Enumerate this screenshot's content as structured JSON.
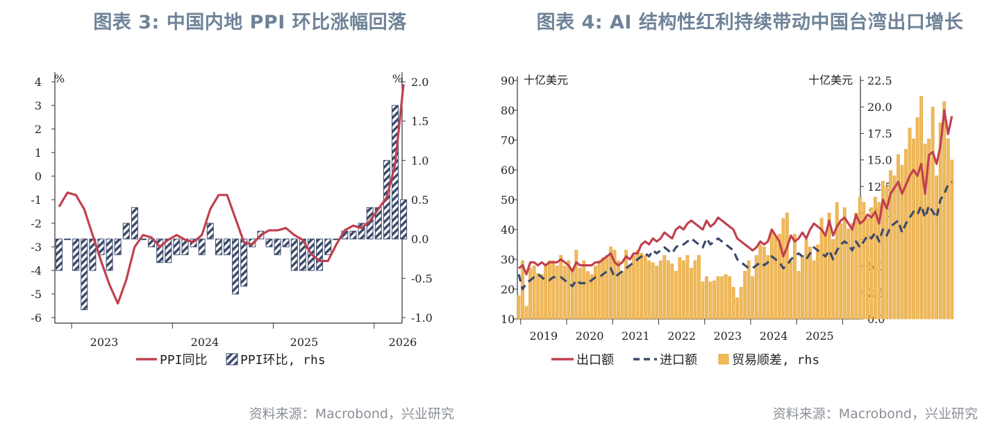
{
  "chart_data": [
    {
      "type": "bar+line",
      "title": "图表 3: 中国内地 PPI 环比涨幅回落",
      "source": "资料来源：Macrobond，兴业研究",
      "unit_left": "%",
      "unit_right": "%",
      "ylim_left": [
        -6,
        4
      ],
      "yticks_left": [
        "4",
        "3",
        "2",
        "1",
        "0",
        "-1",
        "-2",
        "-3",
        "-4",
        "-5",
        "-6"
      ],
      "ylim_right": [
        -1.0,
        2.0
      ],
      "yticks_right": [
        "2.0",
        "1.5",
        "1.0",
        "0.5",
        "0.0",
        "-0.5",
        "-1.0"
      ],
      "xticks": [
        "2023",
        "2024",
        "2025",
        "2026"
      ],
      "legend": [
        "PPI同比",
        "PPI环比, rhs"
      ],
      "colors": {
        "line": "#c0404f",
        "bar": "#3c4a6b"
      },
      "months": [
        "2022-11",
        "2022-12",
        "2023-01",
        "2023-02",
        "2023-03",
        "2023-04",
        "2023-05",
        "2023-06",
        "2023-07",
        "2023-08",
        "2023-09",
        "2023-10",
        "2023-11",
        "2023-12",
        "2024-01",
        "2024-02",
        "2024-03",
        "2024-04",
        "2024-05",
        "2024-06",
        "2024-07",
        "2024-08",
        "2024-09",
        "2024-10",
        "2024-11",
        "2024-12",
        "2025-01",
        "2025-02",
        "2025-03",
        "2025-04",
        "2025-05",
        "2025-06",
        "2025-07",
        "2025-08",
        "2025-09",
        "2025-10",
        "2025-11",
        "2025-12",
        "2026-01",
        "2026-02",
        "2026-03",
        "2026-04"
      ],
      "series": [
        {
          "name": "PPI同比",
          "axis": "left",
          "values": [
            -1.3,
            -0.7,
            -0.8,
            -1.4,
            -2.5,
            -3.6,
            -4.6,
            -5.4,
            -4.4,
            -3.0,
            -2.5,
            -2.6,
            -3.0,
            -2.7,
            -2.5,
            -2.7,
            -2.8,
            -2.5,
            -1.4,
            -0.8,
            -0.8,
            -1.8,
            -2.8,
            -2.9,
            -2.5,
            -2.3,
            -2.3,
            -2.2,
            -2.5,
            -2.7,
            -3.3,
            -3.6,
            -3.6,
            -2.9,
            -2.3,
            -2.1,
            -2.2,
            -1.9,
            -1.4,
            -0.9,
            0.5,
            3.9
          ]
        },
        {
          "name": "PPI环比, rhs",
          "axis": "right",
          "values": [
            -0.4,
            0.0,
            -0.4,
            -0.9,
            -0.4,
            -0.2,
            -0.4,
            -0.2,
            0.2,
            0.4,
            0.0,
            -0.1,
            -0.3,
            -0.3,
            -0.2,
            -0.2,
            -0.1,
            -0.2,
            0.2,
            -0.2,
            -0.2,
            -0.7,
            -0.6,
            -0.1,
            0.1,
            -0.1,
            -0.2,
            -0.1,
            -0.4,
            -0.4,
            -0.4,
            -0.4,
            -0.2,
            0.0,
            0.1,
            0.1,
            0.2,
            0.4,
            0.4,
            1.0,
            1.7,
            0.5
          ]
        }
      ]
    },
    {
      "type": "bar+line",
      "title": "图表 4: AI 结构性红利持续带动中国台湾出口增长",
      "source": "资料来源：Macrobond，兴业研究",
      "unit_left": "十亿美元",
      "unit_right": "十亿美元",
      "ylim_left": [
        10,
        90
      ],
      "yticks_left": [
        "90",
        "80",
        "70",
        "60",
        "50",
        "40",
        "30",
        "20",
        "10"
      ],
      "ylim_right": [
        0.0,
        22.5
      ],
      "yticks_right": [
        "22.5",
        "20.0",
        "17.5",
        "15.0",
        "12.5",
        "10.0",
        "7.5",
        "5.0",
        "2.5",
        "0.0"
      ],
      "xticks": [
        "2019",
        "2020",
        "2021",
        "2022",
        "2023",
        "2024",
        "2025"
      ],
      "legend": [
        "出口额",
        "进口额",
        "贸易顺差, rhs"
      ],
      "colors": {
        "export": "#c0404f",
        "import": "#3c4a6b",
        "surplus": "#f0b95a",
        "surplus_edge": "#e3a53e"
      },
      "start_month": "2018-12",
      "series": [
        {
          "name": "出口额",
          "axis": "left",
          "values": [
            27,
            28,
            25,
            29,
            29,
            28,
            29,
            28,
            29,
            29,
            29,
            30,
            29,
            28,
            26,
            29,
            28,
            28,
            28,
            28,
            29,
            29,
            30,
            31,
            32,
            29,
            28,
            29,
            31,
            30,
            32,
            32,
            35,
            36,
            35,
            37,
            36,
            37,
            39,
            38,
            37,
            40,
            41,
            40,
            42,
            43,
            42,
            41,
            40,
            43,
            41,
            42,
            44,
            43,
            42,
            41,
            40,
            37,
            36,
            35,
            34,
            33,
            34,
            36,
            35,
            36,
            40,
            38,
            36,
            31,
            34,
            38,
            36,
            37,
            39,
            37,
            40,
            42,
            41,
            40,
            38,
            43,
            38,
            41,
            43,
            44,
            42,
            40,
            45,
            42,
            43,
            45,
            44,
            46,
            42,
            50,
            47,
            52,
            54,
            56,
            52,
            55,
            58,
            60,
            58,
            62,
            52,
            65,
            66,
            62,
            68,
            80,
            72,
            78
          ]
        },
        {
          "name": "进口额",
          "axis": "left",
          "values": [
            25,
            20,
            22,
            23,
            24,
            25,
            24,
            23,
            23,
            24,
            24,
            24,
            23,
            22,
            21,
            23,
            22,
            22,
            22,
            23,
            24,
            24,
            25,
            26,
            27,
            24,
            25,
            26,
            27,
            28,
            29,
            30,
            31,
            32,
            31,
            33,
            32,
            33,
            34,
            33,
            32,
            34,
            35,
            35,
            36,
            37,
            36,
            35,
            34,
            37,
            35,
            36,
            37,
            36,
            35,
            34,
            33,
            30,
            29,
            28,
            27,
            27,
            28,
            29,
            28,
            29,
            31,
            30,
            29,
            27,
            28,
            30,
            31,
            32,
            31,
            30,
            32,
            34,
            33,
            32,
            31,
            33,
            30,
            33,
            35,
            36,
            35,
            33,
            36,
            34,
            36,
            38,
            37,
            39,
            36,
            40,
            38,
            41,
            42,
            43,
            39,
            42,
            44,
            46,
            45,
            48,
            44,
            48,
            46,
            44,
            50,
            52,
            55,
            56
          ]
        },
        {
          "name": "贸易顺差, rhs",
          "axis": "right",
          "values": [
            2.2,
            5.5,
            1.2,
            4.8,
            5.0,
            4.3,
            4.2,
            5.2,
            5.5,
            5.5,
            5.0,
            6.0,
            5.0,
            5.5,
            4.8,
            6.5,
            4.8,
            5.5,
            4.5,
            4.2,
            5.0,
            5.5,
            5.8,
            6.0,
            6.8,
            6.5,
            5.5,
            4.5,
            6.5,
            5.0,
            6.0,
            6.5,
            6.2,
            6.0,
            5.5,
            5.3,
            5.0,
            5.5,
            6.0,
            5.5,
            5.2,
            4.5,
            5.8,
            5.5,
            6.0,
            4.8,
            5.5,
            6.0,
            3.5,
            4.0,
            3.5,
            3.6,
            4.0,
            4.0,
            4.2,
            4.0,
            3.0,
            2.0,
            3.0,
            4.5,
            5.5,
            4.0,
            6.0,
            7.0,
            6.8,
            6.0,
            8.2,
            7.8,
            8.0,
            9.5,
            10.0,
            5.5,
            8.0,
            4.5,
            6.0,
            7.5,
            6.8,
            5.5,
            7.0,
            9.5,
            8.0,
            10.0,
            7.5,
            11.0,
            9.0,
            10.5,
            8.5,
            9.0,
            10.0,
            11.5,
            11.0,
            9.5,
            10.5,
            11.5,
            11.0,
            13.0,
            12.5,
            14.0,
            13.5,
            15.5,
            14.5,
            16.0,
            18.0,
            17.0,
            19.0,
            21.0,
            16.5,
            17.0,
            20.0,
            13.5,
            18.5,
            20.5,
            17.0,
            15.0
          ]
        }
      ]
    }
  ]
}
